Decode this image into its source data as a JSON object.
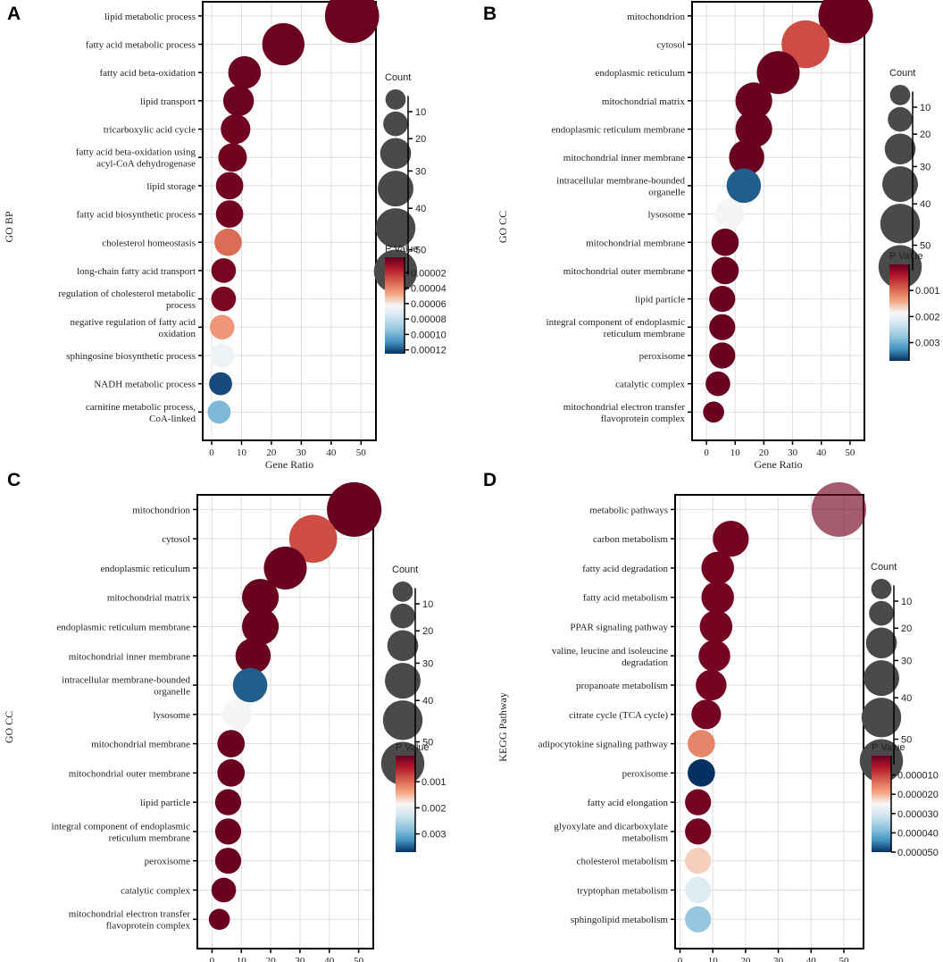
{
  "figure": {
    "count_legend_title": "Count",
    "pvalue_legend_title": "P Value",
    "count_legend_values": [
      10,
      20,
      30,
      40,
      50
    ],
    "colors": {
      "high_sig": "#67001f",
      "mid": "#f7f7f7",
      "low_sig": "#053061",
      "count_circle": "#4a4a4a"
    }
  },
  "chart_data": [
    {
      "panel": "A",
      "type": "scatter",
      "title": "",
      "xlabel": "Gene Ratio",
      "ylabel": "GO BP",
      "xlim": [
        -3,
        55
      ],
      "xticks": [
        0,
        10,
        20,
        30,
        40,
        50
      ],
      "pvalue_range": [
        0,
        0.000125
      ],
      "pvalue_ticks": [
        2e-05,
        4e-05,
        6e-05,
        8e-05,
        0.0001,
        0.00012
      ],
      "pvalue_tick_labels": [
        "0.00002",
        "0.00004",
        "0.00006",
        "0.00008",
        "0.00010",
        "0.00012"
      ],
      "terms": [
        "lipid metabolic process",
        "fatty acid metabolic process",
        "fatty acid beta-oxidation",
        "lipid transport",
        "tricarboxylic acid cycle",
        "fatty acid beta-oxidation using acyl-CoA dehydrogenase",
        "lipid storage",
        "fatty acid biosynthetic process",
        "cholesterol homeostasis",
        "long-chain fatty acid transport",
        "regulation of cholesterol metabolic process",
        "negative regulation of fatty acid oxidation",
        "sphingosine biosynthetic process",
        "NADH metabolic process",
        "carnitine metabolic process, CoA-linked"
      ],
      "term_lines": [
        [
          "lipid metabolic process"
        ],
        [
          "fatty acid metabolic process"
        ],
        [
          "fatty acid beta-oxidation"
        ],
        [
          "lipid transport"
        ],
        [
          "tricarboxylic acid cycle"
        ],
        [
          "fatty acid beta-oxidation using",
          "acyl-CoA dehydrogenase"
        ],
        [
          "lipid storage"
        ],
        [
          "fatty acid biosynthetic process"
        ],
        [
          "cholesterol homeostasis"
        ],
        [
          "long-chain fatty acid transport"
        ],
        [
          "regulation of cholesterol metabolic",
          "process"
        ],
        [
          "negative regulation of fatty acid",
          "oxidation"
        ],
        [
          "sphingosine biosynthetic process"
        ],
        [
          "NADH metabolic process"
        ],
        [
          "carnitine metabolic process,",
          "CoA-linked"
        ]
      ],
      "gene_ratio": [
        47,
        24,
        11,
        9,
        8,
        7,
        6,
        6,
        5.5,
        4,
        4,
        3.5,
        3.5,
        3,
        2.5
      ],
      "count": [
        47,
        24,
        11,
        9,
        8,
        7,
        6,
        6,
        6,
        4,
        4,
        4,
        4,
        3,
        3
      ],
      "p_value": [
        1e-06,
        1e-06,
        1e-06,
        1e-06,
        2e-06,
        2e-06,
        2e-06,
        2e-06,
        3.4e-05,
        3e-06,
        4e-06,
        4.4e-05,
        6.6e-05,
        0.000121,
        9.8e-05
      ]
    },
    {
      "panel": "B",
      "type": "scatter",
      "title": "",
      "xlabel": "Gene Ratio",
      "ylabel": "GO CC",
      "xlim": [
        -5,
        55
      ],
      "xticks": [
        0,
        10,
        20,
        30,
        40,
        50
      ],
      "pvalue_range": [
        0,
        0.0037
      ],
      "pvalue_ticks": [
        0.001,
        0.002,
        0.003
      ],
      "pvalue_tick_labels": [
        "0.001",
        "0.002",
        "0.003"
      ],
      "terms": [
        "mitochondrion",
        "cytosol",
        "endoplasmic reticulum",
        "mitochondrial matrix",
        "endoplasmic reticulum membrane",
        "mitochondrial inner membrane",
        "intracellular membrane-bounded organelle",
        "lysosome",
        "mitochondrial membrane",
        "mitochondrial outer membrane",
        "lipid particle",
        "integral component of endoplasmic reticulum membrane",
        "peroxisome",
        "catalytic complex",
        "mitochondrial electron transfer flavoprotein complex"
      ],
      "term_lines": [
        [
          "mitochondrion"
        ],
        [
          "cytosol"
        ],
        [
          "endoplasmic reticulum"
        ],
        [
          "mitochondrial matrix"
        ],
        [
          "endoplasmic reticulum membrane"
        ],
        [
          "mitochondrial inner membrane"
        ],
        [
          "intracellular membrane-bounded",
          "organelle"
        ],
        [
          "lysosome"
        ],
        [
          "mitochondrial membrane"
        ],
        [
          "mitochondrial outer membrane"
        ],
        [
          "lipid particle"
        ],
        [
          "integral component of endoplasmic",
          "reticulum membrane"
        ],
        [
          "peroxisome"
        ],
        [
          "catalytic complex"
        ],
        [
          "mitochondrial electron transfer",
          "flavoprotein complex"
        ]
      ],
      "gene_ratio": [
        48.5,
        34.5,
        25,
        16.5,
        16.5,
        14,
        13,
        8,
        6.5,
        6.5,
        5.5,
        5.5,
        5.5,
        4,
        2.5
      ],
      "count": [
        48,
        34,
        25,
        16,
        16,
        14,
        13,
        8,
        6,
        6,
        5,
        5,
        5,
        4,
        2
      ],
      "p_value": [
        2e-05,
        0.0008,
        2e-05,
        2e-05,
        2e-05,
        2e-05,
        0.0035,
        0.0019,
        2e-05,
        2e-05,
        2e-05,
        2e-05,
        2e-05,
        2e-05,
        2e-05
      ]
    },
    {
      "panel": "C",
      "type": "scatter",
      "title": "",
      "xlabel": "Gene Ratio",
      "ylabel": "GO CC",
      "xlim": [
        -5,
        55
      ],
      "xticks": [
        0,
        10,
        20,
        30,
        40,
        50
      ],
      "pvalue_range": [
        0,
        0.0037
      ],
      "pvalue_ticks": [
        0.001,
        0.002,
        0.003
      ],
      "pvalue_tick_labels": [
        "0.001",
        "0.002",
        "0.003"
      ],
      "terms": [
        "mitochondrion",
        "cytosol",
        "endoplasmic reticulum",
        "mitochondrial matrix",
        "endoplasmic reticulum membrane",
        "mitochondrial inner membrane",
        "intracellular membrane-bounded organelle",
        "lysosome",
        "mitochondrial membrane",
        "mitochondrial outer membrane",
        "lipid particle",
        "integral component of endoplasmic reticulum membrane",
        "peroxisome",
        "catalytic complex",
        "mitochondrial electron transfer flavoprotein complex"
      ],
      "term_lines": [
        [
          "mitochondrion"
        ],
        [
          "cytosol"
        ],
        [
          "endoplasmic reticulum"
        ],
        [
          "mitochondrial matrix"
        ],
        [
          "endoplasmic reticulum membrane"
        ],
        [
          "mitochondrial inner membrane"
        ],
        [
          "intracellular membrane-bounded",
          "organelle"
        ],
        [
          "lysosome"
        ],
        [
          "mitochondrial membrane"
        ],
        [
          "mitochondrial outer membrane"
        ],
        [
          "lipid particle"
        ],
        [
          "integral component of endoplasmic",
          "reticulum membrane"
        ],
        [
          "peroxisome"
        ],
        [
          "catalytic complex"
        ],
        [
          "mitochondrial electron transfer",
          "flavoprotein complex"
        ]
      ],
      "gene_ratio": [
        48.5,
        34.5,
        25,
        16.5,
        16.5,
        14,
        13,
        8.5,
        6.5,
        6.5,
        5.5,
        5.5,
        5.5,
        4,
        2.5
      ],
      "count": [
        48,
        34,
        25,
        16,
        16,
        14,
        13,
        8,
        6,
        6,
        5,
        5,
        5,
        4,
        2
      ],
      "p_value": [
        2e-05,
        0.0008,
        2e-05,
        2e-05,
        2e-05,
        2e-05,
        0.0035,
        0.0019,
        2e-05,
        2e-05,
        2e-05,
        2e-05,
        2e-05,
        2e-05,
        2e-05
      ]
    },
    {
      "panel": "D",
      "type": "scatter",
      "title": "",
      "xlabel": "Gene Ratio",
      "ylabel": "KEGG Pathway",
      "xlim": [
        -1.5,
        56
      ],
      "xticks": [
        0,
        10,
        20,
        30,
        40,
        50
      ],
      "pvalue_range": [
        0,
        5e-05
      ],
      "pvalue_ticks": [
        1e-05,
        2e-05,
        3e-05,
        4e-05,
        5e-05
      ],
      "pvalue_tick_labels": [
        "0.000010",
        "0.000020",
        "0.000030",
        "0.000040",
        "0.000050"
      ],
      "terms": [
        "metabolic pathways",
        "carbon metabolism",
        "fatty acid degradation",
        "fatty acid metabolism",
        "PPAR signaling pathway",
        "valine, leucine and isoleucine degradation",
        "propanoate metabolism",
        "citrate cycle (TCA cycle)",
        "adipocytokine signaling pathway",
        "peroxisome",
        "fatty acid elongation",
        "glyoxylate and dicarboxylate metabolism",
        "cholesterol metabolism",
        "tryptophan metabolism",
        "sphingolipid metabolism"
      ],
      "term_lines": [
        [
          "metabolic pathways"
        ],
        [
          "carbon metabolism"
        ],
        [
          "fatty acid degradation"
        ],
        [
          "fatty acid metabolism"
        ],
        [
          "PPAR signaling pathway"
        ],
        [
          "valine, leucine and isoleucine",
          "degradation"
        ],
        [
          "propanoate metabolism"
        ],
        [
          "citrate cycle (TCA cycle)"
        ],
        [
          "adipocytokine signaling pathway"
        ],
        [
          "peroxisome"
        ],
        [
          "fatty acid elongation"
        ],
        [
          "glyoxylate and dicarboxylate",
          "metabolism"
        ],
        [
          "cholesterol metabolism"
        ],
        [
          "tryptophan metabolism"
        ],
        [
          "sphingolipid metabolism"
        ]
      ],
      "gene_ratio": [
        48.5,
        15.5,
        11.5,
        11.5,
        11,
        10.5,
        9.5,
        8,
        6.5,
        6.5,
        5.5,
        5.5,
        5.5,
        5.5,
        5.5
      ],
      "count": [
        48,
        15,
        11,
        11,
        11,
        10,
        9,
        8,
        6,
        6,
        5,
        5,
        5,
        5,
        5
      ],
      "p_value": [
        1e-06,
        1e-06,
        1e-06,
        1e-06,
        1e-06,
        1e-06,
        1e-06,
        1e-06,
        1.6e-05,
        5e-05,
        1e-06,
        1e-06,
        2.2e-05,
        2.9e-05,
        3.7e-05
      ],
      "alpha": [
        0.65,
        1,
        1,
        1,
        1,
        1,
        1,
        1,
        1,
        1,
        1,
        1,
        1,
        1,
        1
      ]
    }
  ]
}
